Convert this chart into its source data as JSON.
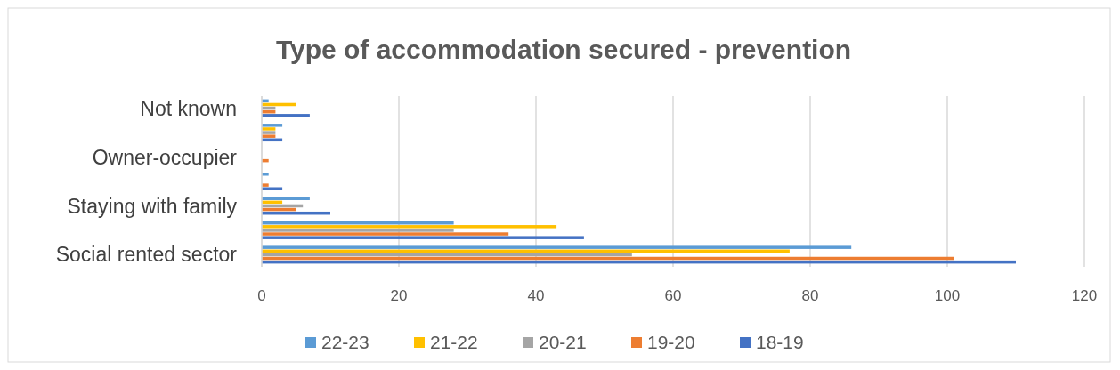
{
  "chart_data": {
    "type": "bar",
    "orientation": "horizontal",
    "title": "Type of accommodation secured - prevention",
    "categories": [
      "Not known",
      null,
      "Owner-occupier",
      null,
      "Staying with family",
      null,
      "Social rented sector"
    ],
    "series": [
      {
        "name": "22-23",
        "color": "#5b9bd5",
        "values": [
          1,
          3,
          0,
          1,
          7,
          28,
          86
        ]
      },
      {
        "name": "21-22",
        "color": "#ffc000",
        "values": [
          5,
          2,
          0,
          0,
          3,
          43,
          77
        ]
      },
      {
        "name": "20-21",
        "color": "#a5a5a5",
        "values": [
          2,
          2,
          0,
          0,
          6,
          28,
          54
        ]
      },
      {
        "name": "19-20",
        "color": "#ed7d31",
        "values": [
          2,
          2,
          1,
          1,
          5,
          36,
          101
        ]
      },
      {
        "name": "18-19",
        "color": "#4472c4",
        "values": [
          7,
          3,
          0,
          3,
          10,
          47,
          110
        ]
      }
    ],
    "xlim": [
      0,
      120
    ],
    "xticks": [
      0,
      20,
      40,
      60,
      80,
      100,
      120
    ],
    "grid": "x",
    "legend": "bottom"
  }
}
